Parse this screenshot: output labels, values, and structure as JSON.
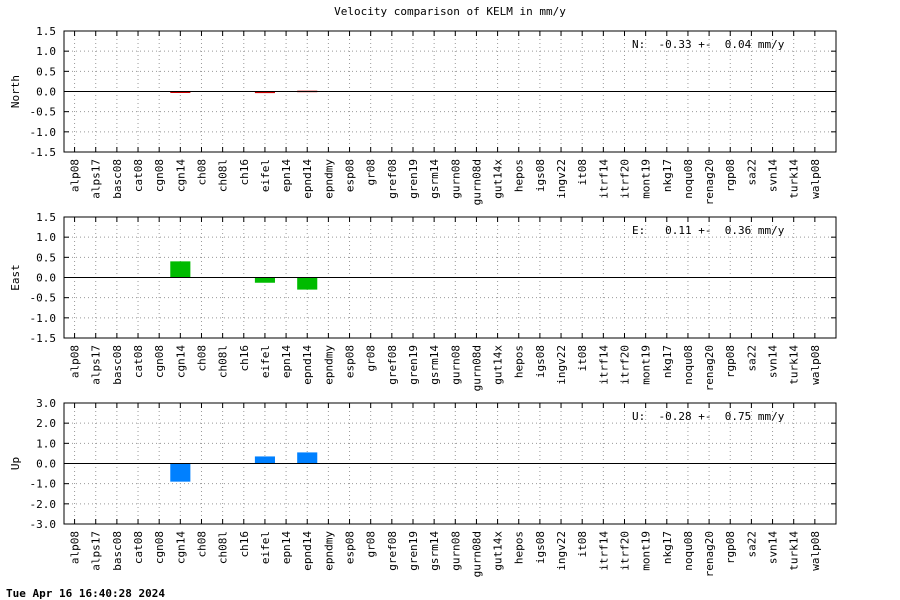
{
  "title": "Velocity comparison of KELM in mm/y",
  "footer": "Tue Apr 16 16:40:28 2024",
  "colors": {
    "north": "#cc0000",
    "east": "#00bb00",
    "up": "#0080ff",
    "grid": "#999999",
    "axis": "#000000"
  },
  "chart_data": [
    {
      "type": "bar",
      "ylabel": "North",
      "annotation": "N:  -0.33 +-  0.04 mm/y",
      "ylim": [
        -1.5,
        1.5
      ],
      "yticks": [
        "1.5",
        "1.0",
        "0.5",
        "0.0",
        "-0.5",
        "-1.0",
        "-1.5"
      ],
      "ytick_values": [
        1.5,
        1.0,
        0.5,
        0.0,
        -0.5,
        -1.0,
        -1.5
      ],
      "grid": true,
      "categories": [
        "alp08",
        "alps17",
        "basc08",
        "cat08",
        "cgn08",
        "cgn14",
        "ch08",
        "ch08l",
        "ch16",
        "eifel",
        "epn14",
        "epnd14",
        "epndmy",
        "esp08",
        "gr08",
        "gref08",
        "gren19",
        "gsrm14",
        "gurn08",
        "gurn08d",
        "gut14x",
        "hepos",
        "igs08",
        "ingv22",
        "it08",
        "itrf14",
        "itrf20",
        "mont19",
        "nkg17",
        "noqu08",
        "renag20",
        "rgp08",
        "sa22",
        "svn14",
        "turk14",
        "walp08"
      ],
      "values": [
        null,
        null,
        null,
        null,
        null,
        -0.02,
        null,
        null,
        null,
        -0.04,
        null,
        0.02,
        null,
        null,
        null,
        null,
        null,
        null,
        null,
        null,
        null,
        null,
        null,
        null,
        null,
        null,
        null,
        null,
        null,
        null,
        null,
        null,
        null,
        null,
        null,
        null
      ]
    },
    {
      "type": "bar",
      "ylabel": "East",
      "annotation": "E:   0.11 +-  0.36 mm/y",
      "ylim": [
        -1.5,
        1.5
      ],
      "yticks": [
        "1.5",
        "1.0",
        "0.5",
        "0.0",
        "-0.5",
        "-1.0",
        "-1.5"
      ],
      "ytick_values": [
        1.5,
        1.0,
        0.5,
        0.0,
        -0.5,
        -1.0,
        -1.5
      ],
      "grid": true,
      "categories": [
        "alp08",
        "alps17",
        "basc08",
        "cat08",
        "cgn08",
        "cgn14",
        "ch08",
        "ch08l",
        "ch16",
        "eifel",
        "epn14",
        "epnd14",
        "epndmy",
        "esp08",
        "gr08",
        "gref08",
        "gren19",
        "gsrm14",
        "gurn08",
        "gurn08d",
        "gut14x",
        "hepos",
        "igs08",
        "ingv22",
        "it08",
        "itrf14",
        "itrf20",
        "mont19",
        "nkg17",
        "noqu08",
        "renag20",
        "rgp08",
        "sa22",
        "svn14",
        "turk14",
        "walp08"
      ],
      "values": [
        null,
        null,
        null,
        null,
        null,
        0.4,
        null,
        null,
        null,
        -0.13,
        null,
        -0.3,
        null,
        null,
        null,
        null,
        null,
        null,
        null,
        null,
        null,
        null,
        null,
        null,
        null,
        null,
        null,
        null,
        null,
        null,
        null,
        null,
        null,
        null,
        null,
        null
      ]
    },
    {
      "type": "bar",
      "ylabel": "Up",
      "annotation": "U:  -0.28 +-  0.75 mm/y",
      "ylim": [
        -3.0,
        3.0
      ],
      "yticks": [
        "3.0",
        "2.0",
        "1.0",
        "0.0",
        "-1.0",
        "-2.0",
        "-3.0"
      ],
      "ytick_values": [
        3.0,
        2.0,
        1.0,
        0.0,
        -1.0,
        -2.0,
        -3.0
      ],
      "grid": true,
      "categories": [
        "alp08",
        "alps17",
        "basc08",
        "cat08",
        "cgn08",
        "cgn14",
        "ch08",
        "ch08l",
        "ch16",
        "eifel",
        "epn14",
        "epnd14",
        "epndmy",
        "esp08",
        "gr08",
        "gref08",
        "gren19",
        "gsrm14",
        "gurn08",
        "gurn08d",
        "gut14x",
        "hepos",
        "igs08",
        "ingv22",
        "it08",
        "itrf14",
        "itrf20",
        "mont19",
        "nkg17",
        "noqu08",
        "renag20",
        "rgp08",
        "sa22",
        "svn14",
        "turk14",
        "walp08"
      ],
      "values": [
        null,
        null,
        null,
        null,
        null,
        -0.9,
        null,
        null,
        null,
        0.35,
        null,
        0.55,
        null,
        null,
        null,
        null,
        null,
        null,
        null,
        null,
        null,
        null,
        null,
        null,
        null,
        null,
        null,
        null,
        null,
        null,
        null,
        null,
        null,
        null,
        null,
        null
      ]
    }
  ]
}
